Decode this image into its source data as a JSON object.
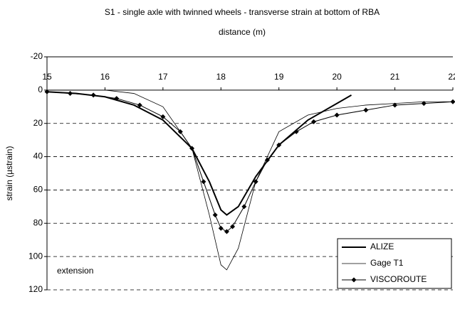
{
  "chart_data": {
    "type": "line",
    "title": "S1 - single axle with twinned wheels - transverse strain at bottom of RBA",
    "x_label": "distance (m)",
    "y_label": "strain (µstrain)",
    "annotation": "extension",
    "xlim": [
      15,
      22
    ],
    "xticks": [
      15,
      16,
      17,
      18,
      19,
      20,
      21,
      22
    ],
    "ylim": [
      -20,
      120
    ],
    "yticks": [
      -20,
      0,
      20,
      40,
      60,
      80,
      100,
      120
    ],
    "y_inverted": true,
    "grid": true,
    "legend": "bottom-right",
    "series": [
      {
        "name": "ALIZE",
        "color": "#000000",
        "line_width": 2,
        "x": [
          15,
          15.5,
          16,
          16.5,
          17,
          17.5,
          17.8,
          18,
          18.1,
          18.3,
          18.6,
          19,
          19.5,
          20,
          20.25
        ],
        "values": [
          1,
          2,
          4,
          9,
          18,
          35,
          55,
          72,
          75,
          70,
          52,
          33,
          18,
          8,
          3
        ]
      },
      {
        "name": "Gage T1",
        "color": "#000000",
        "line_width": 0.8,
        "x": [
          15,
          15.5,
          16,
          16.5,
          17,
          17.5,
          17.8,
          18,
          18.1,
          18.3,
          18.6,
          19,
          19.5,
          20,
          20.5,
          21,
          21.5,
          22
        ],
        "values": [
          0,
          0,
          0,
          2,
          10,
          35,
          75,
          105,
          108,
          95,
          55,
          25,
          15,
          11,
          9,
          8,
          7,
          7
        ]
      },
      {
        "name": "VISCOROUTE",
        "color": "#000000",
        "line_width": 1,
        "marker": "diamond",
        "x": [
          15,
          15.4,
          15.8,
          16.2,
          16.6,
          17,
          17.3,
          17.5,
          17.7,
          17.9,
          18,
          18.1,
          18.2,
          18.4,
          18.6,
          18.8,
          19,
          19.3,
          19.6,
          20,
          20.5,
          21,
          21.5,
          22
        ],
        "values": [
          1,
          2,
          3,
          5,
          9,
          16,
          25,
          35,
          55,
          75,
          83,
          85,
          82,
          70,
          55,
          42,
          33,
          25,
          19,
          15,
          12,
          9,
          8,
          7
        ]
      }
    ]
  }
}
